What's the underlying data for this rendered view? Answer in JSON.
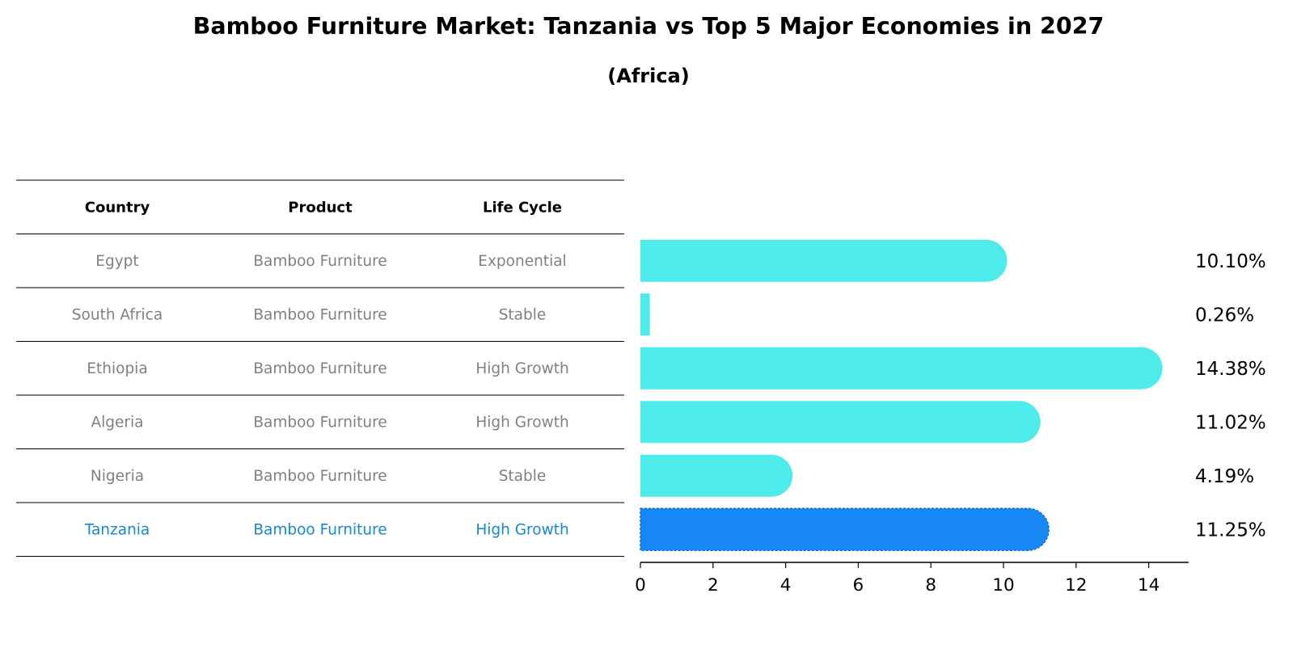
{
  "chart_data": {
    "type": "bar",
    "title": "Bamboo Furniture Market: Tanzania vs Top 5 Major Economies in 2027",
    "subtitle": "(Africa)",
    "table_headers": [
      "Country",
      "Product",
      "Life Cycle"
    ],
    "rows": [
      {
        "country": "Egypt",
        "product": "Bamboo Furniture",
        "life_cycle": "Exponential",
        "value": 10.1,
        "label": "10.10%",
        "highlight": false
      },
      {
        "country": "South Africa",
        "product": "Bamboo Furniture",
        "life_cycle": "Stable",
        "value": 0.26,
        "label": "0.26%",
        "highlight": false
      },
      {
        "country": "Ethiopia",
        "product": "Bamboo Furniture",
        "life_cycle": "High Growth",
        "value": 14.38,
        "label": "14.38%",
        "highlight": false
      },
      {
        "country": "Algeria",
        "product": "Bamboo Furniture",
        "life_cycle": "High Growth",
        "value": 11.02,
        "label": "11.02%",
        "highlight": false
      },
      {
        "country": "Nigeria",
        "product": "Bamboo Furniture",
        "life_cycle": "Stable",
        "value": 4.19,
        "label": "4.19%",
        "highlight": false
      },
      {
        "country": "Tanzania",
        "product": "Bamboo Furniture",
        "life_cycle": "High Growth",
        "value": 11.25,
        "label": "11.25%",
        "highlight": true
      }
    ],
    "xlim": [
      0,
      15.1
    ],
    "xticks": [
      0,
      2,
      4,
      6,
      8,
      10,
      12,
      14
    ],
    "colors": {
      "bar": "#4DECEA",
      "highlight_bar": "#1787F5",
      "text": "#808080",
      "highlight_text": "#1787D0"
    }
  }
}
